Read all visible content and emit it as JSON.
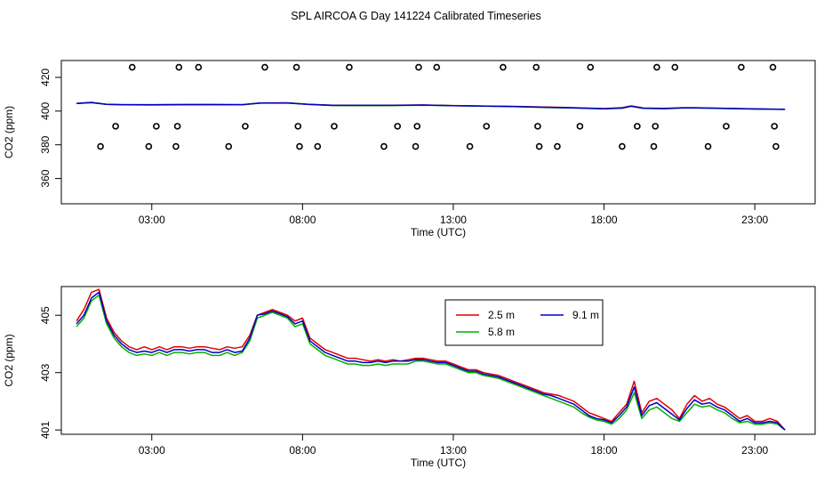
{
  "title": "SPL AIRCOA G  Day 141224  Calibrated Timeseries",
  "colors": {
    "series_2_5": "#e00000",
    "series_5_8": "#00b000",
    "series_9_1": "#0000c8",
    "axis": "#000000"
  },
  "chart_data": [
    {
      "type": "scatter+line",
      "name": "top-panel",
      "xlabel": "Time (UTC)",
      "ylabel": "CO2 (ppm)",
      "xlim": [
        0.0,
        25.0
      ],
      "ylim": [
        345,
        430
      ],
      "x_ticks": [
        3,
        8,
        13,
        18,
        23
      ],
      "x_tick_labels": [
        "03:00",
        "08:00",
        "13:00",
        "18:00",
        "23:00"
      ],
      "y_ticks": [
        360,
        380,
        400,
        420
      ],
      "y_tick_labels": [
        "360",
        "380",
        "400",
        "420"
      ],
      "reference_points": {
        "x": [
          1.3,
          1.8,
          2.35,
          2.9,
          3.15,
          3.8,
          3.85,
          3.9,
          4.55,
          5.55,
          6.1,
          6.75,
          7.8,
          7.85,
          7.9,
          8.5,
          9.05,
          9.55,
          10.7,
          11.15,
          11.75,
          11.8,
          11.85,
          12.45,
          13.55,
          14.1,
          14.65,
          15.75,
          15.8,
          15.85,
          16.45,
          17.2,
          17.55,
          18.6,
          19.1,
          19.65,
          19.7,
          19.75,
          20.35,
          21.45,
          22.05,
          22.55,
          23.6,
          23.65,
          23.7
        ],
        "y": [
          379,
          391,
          426,
          379,
          391,
          379,
          391,
          426,
          426,
          379,
          391,
          426,
          426,
          391,
          379,
          379,
          391,
          426,
          379,
          391,
          379,
          391,
          426,
          426,
          379,
          391,
          426,
          426,
          391,
          379,
          379,
          391,
          426,
          379,
          391,
          379,
          391,
          426,
          426,
          379,
          391,
          426,
          426,
          391,
          379
        ]
      },
      "series_x": [
        0.5,
        1.0,
        1.5,
        2.0,
        3.0,
        4.0,
        5.0,
        6.0,
        6.6,
        7.5,
        8.2,
        9.0,
        10.0,
        11.0,
        12.0,
        13.0,
        14.0,
        15.0,
        16.0,
        17.0,
        18.0,
        18.6,
        18.9,
        19.3,
        20.0,
        20.6,
        21.0,
        22.0,
        23.0,
        24.0
      ],
      "series": [
        {
          "name": "2.5 m",
          "values": [
            404.5,
            405.2,
            404.0,
            403.8,
            403.8,
            403.9,
            403.9,
            403.8,
            404.8,
            404.9,
            404.0,
            403.5,
            403.4,
            403.5,
            403.6,
            403.3,
            403.0,
            402.8,
            402.4,
            402.0,
            401.5,
            402.0,
            403.1,
            401.8,
            401.6,
            402.0,
            402.0,
            401.6,
            401.3,
            401.0
          ]
        },
        {
          "name": "5.8 m",
          "values": [
            404.5,
            405.0,
            404.0,
            403.7,
            403.6,
            403.7,
            403.8,
            403.7,
            404.7,
            404.8,
            403.9,
            403.3,
            403.3,
            403.3,
            403.5,
            403.2,
            402.9,
            402.7,
            402.2,
            401.8,
            401.4,
            401.7,
            402.8,
            401.6,
            401.4,
            401.8,
            401.9,
            401.5,
            401.2,
            401.0
          ]
        },
        {
          "name": "9.1 m",
          "values": [
            404.5,
            405.1,
            404.0,
            403.8,
            403.7,
            403.8,
            403.8,
            403.8,
            404.8,
            404.8,
            404.0,
            403.4,
            403.4,
            403.4,
            403.6,
            403.2,
            402.9,
            402.7,
            402.3,
            401.9,
            401.4,
            401.8,
            402.9,
            401.7,
            401.5,
            401.9,
            401.9,
            401.6,
            401.3,
            401.0
          ]
        }
      ]
    },
    {
      "type": "line",
      "name": "bottom-panel",
      "xlabel": "Time (UTC)",
      "ylabel": "CO2 (ppm)",
      "xlim": [
        0.0,
        25.0
      ],
      "ylim": [
        400.85,
        406.0
      ],
      "x_ticks": [
        3,
        8,
        13,
        18,
        23
      ],
      "x_tick_labels": [
        "03:00",
        "08:00",
        "13:00",
        "18:00",
        "23:00"
      ],
      "y_ticks": [
        401,
        403,
        405
      ],
      "y_tick_labels": [
        "401",
        "403",
        "405"
      ],
      "legend": {
        "entries": [
          "2.5 m",
          "5.8 m",
          "9.1 m"
        ],
        "placement": "top-center"
      },
      "x": [
        0.5,
        0.75,
        1.0,
        1.25,
        1.5,
        1.75,
        2.0,
        2.25,
        2.5,
        2.75,
        3.0,
        3.25,
        3.5,
        3.75,
        4.0,
        4.25,
        4.5,
        4.75,
        5.0,
        5.25,
        5.5,
        5.75,
        6.0,
        6.25,
        6.5,
        6.75,
        7.0,
        7.25,
        7.5,
        7.75,
        8.0,
        8.25,
        8.5,
        8.75,
        9.0,
        9.25,
        9.5,
        9.75,
        10.0,
        10.25,
        10.5,
        10.75,
        11.0,
        11.25,
        11.5,
        11.75,
        12.0,
        12.25,
        12.5,
        12.75,
        13.0,
        13.25,
        13.5,
        13.75,
        14.0,
        14.25,
        14.5,
        14.75,
        15.0,
        15.25,
        15.5,
        15.75,
        16.0,
        16.25,
        16.5,
        16.75,
        17.0,
        17.25,
        17.5,
        17.75,
        18.0,
        18.25,
        18.5,
        18.75,
        19.0,
        19.25,
        19.5,
        19.75,
        20.0,
        20.25,
        20.5,
        20.75,
        21.0,
        21.25,
        21.5,
        21.75,
        22.0,
        22.25,
        22.5,
        22.75,
        23.0,
        23.25,
        23.5,
        23.75,
        24.0
      ],
      "series": [
        {
          "name": "2.5 m",
          "values": [
            404.8,
            405.2,
            405.8,
            405.9,
            404.9,
            404.4,
            404.1,
            403.9,
            403.8,
            403.9,
            403.8,
            403.9,
            403.8,
            403.9,
            403.9,
            403.85,
            403.9,
            403.9,
            403.85,
            403.8,
            403.9,
            403.85,
            403.9,
            404.3,
            405.0,
            405.1,
            405.2,
            405.1,
            405.0,
            404.8,
            404.9,
            404.2,
            404.0,
            403.8,
            403.7,
            403.6,
            403.5,
            403.5,
            403.45,
            403.4,
            403.45,
            403.4,
            403.45,
            403.4,
            403.45,
            403.5,
            403.5,
            403.45,
            403.4,
            403.4,
            403.3,
            403.2,
            403.1,
            403.1,
            403.0,
            402.95,
            402.9,
            402.8,
            402.7,
            402.6,
            402.5,
            402.4,
            402.3,
            402.25,
            402.2,
            402.1,
            402.0,
            401.8,
            401.6,
            401.5,
            401.4,
            401.3,
            401.6,
            401.9,
            402.7,
            401.6,
            402.0,
            402.1,
            401.9,
            401.7,
            401.4,
            401.9,
            402.2,
            402.0,
            402.1,
            401.9,
            401.8,
            401.6,
            401.4,
            401.5,
            401.3,
            401.3,
            401.4,
            401.3,
            401.0
          ]
        },
        {
          "name": "5.8 m",
          "values": [
            404.6,
            404.9,
            405.5,
            405.7,
            404.7,
            404.2,
            403.9,
            403.7,
            403.6,
            403.65,
            403.6,
            403.7,
            403.6,
            403.7,
            403.7,
            403.65,
            403.7,
            403.7,
            403.6,
            403.6,
            403.7,
            403.6,
            403.7,
            404.1,
            404.9,
            405.0,
            405.1,
            405.0,
            404.9,
            404.6,
            404.7,
            404.0,
            403.8,
            403.6,
            403.5,
            403.4,
            403.3,
            403.3,
            403.25,
            403.25,
            403.3,
            403.25,
            403.3,
            403.3,
            403.3,
            403.4,
            403.4,
            403.35,
            403.3,
            403.3,
            403.2,
            403.1,
            403.0,
            403.0,
            402.9,
            402.85,
            402.8,
            402.7,
            402.6,
            402.5,
            402.4,
            402.3,
            402.2,
            402.1,
            402.0,
            401.9,
            401.8,
            401.6,
            401.45,
            401.35,
            401.3,
            401.2,
            401.4,
            401.7,
            402.3,
            401.4,
            401.7,
            401.8,
            401.6,
            401.4,
            401.3,
            401.6,
            401.9,
            401.8,
            401.85,
            401.7,
            401.6,
            401.4,
            401.25,
            401.3,
            401.2,
            401.2,
            401.25,
            401.2,
            401.0
          ]
        },
        {
          "name": "9.1 m",
          "values": [
            404.7,
            405.0,
            405.6,
            405.8,
            404.8,
            404.3,
            404.0,
            403.8,
            403.7,
            403.75,
            403.7,
            403.8,
            403.7,
            403.8,
            403.8,
            403.75,
            403.8,
            403.8,
            403.7,
            403.7,
            403.8,
            403.7,
            403.75,
            404.2,
            405.0,
            405.05,
            405.15,
            405.05,
            404.95,
            404.7,
            404.8,
            404.1,
            403.9,
            403.7,
            403.6,
            403.5,
            403.4,
            403.4,
            403.35,
            403.35,
            403.4,
            403.35,
            403.4,
            403.4,
            403.4,
            403.45,
            403.45,
            403.4,
            403.35,
            403.35,
            403.25,
            403.15,
            403.05,
            403.05,
            402.95,
            402.9,
            402.85,
            402.75,
            402.65,
            402.55,
            402.45,
            402.35,
            402.25,
            402.2,
            402.1,
            402.0,
            401.9,
            401.7,
            401.5,
            401.4,
            401.35,
            401.25,
            401.5,
            401.8,
            402.5,
            401.5,
            401.85,
            401.95,
            401.75,
            401.55,
            401.35,
            401.75,
            402.05,
            401.9,
            401.95,
            401.8,
            401.7,
            401.5,
            401.3,
            401.4,
            401.25,
            401.25,
            401.3,
            401.25,
            401.0
          ]
        }
      ]
    }
  ]
}
